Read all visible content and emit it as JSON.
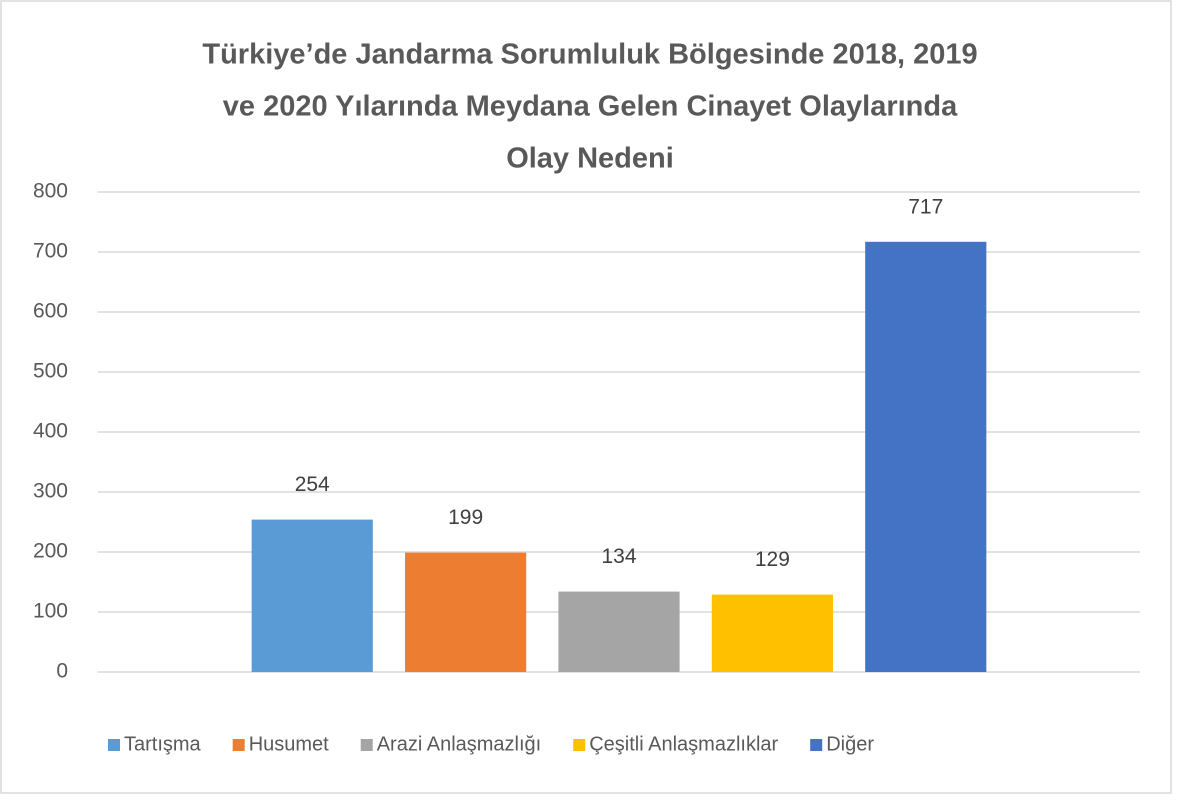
{
  "chart_data": {
    "type": "bar",
    "title": [
      "Türkiye’de Jandarma Sorumluluk Bölgesinde 2018, 2019",
      "ve 2020 Yılarında Meydana Gelen Cinayet Olaylarında",
      "Olay Nedeni"
    ],
    "categories": [
      null
    ],
    "series": [
      {
        "name": "Tartışma",
        "color": "#5b9bd5",
        "values": [
          254
        ]
      },
      {
        "name": "Husumet",
        "color": "#ed7d31",
        "values": [
          199
        ]
      },
      {
        "name": "Arazi Anlaşmazlığı",
        "color": "#a5a5a5",
        "values": [
          134
        ]
      },
      {
        "name": "Çeşitli Anlaşmazlıklar",
        "color": "#ffc000",
        "values": [
          129
        ]
      },
      {
        "name": "Diğer",
        "color": "#4472c4",
        "values": [
          717
        ]
      }
    ],
    "ylim": [
      0,
      800
    ],
    "yticks": [
      0,
      100,
      200,
      300,
      400,
      500,
      600,
      700,
      800
    ],
    "grid": true,
    "legend": "bottom",
    "data_labels": true
  }
}
